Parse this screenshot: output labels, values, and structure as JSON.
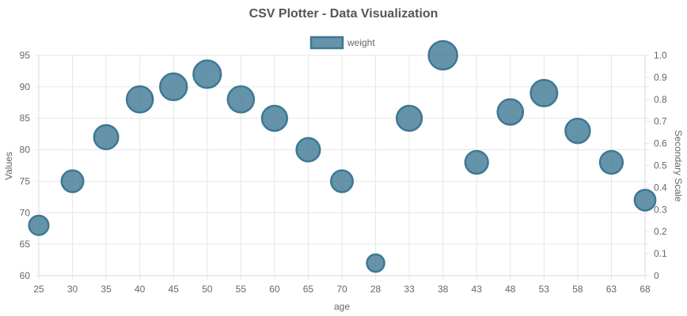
{
  "chart_data": {
    "type": "scatter",
    "subtype": "bubble",
    "title": "CSV Plotter - Data Visualization",
    "xlabel": "age",
    "ylabel": "Values",
    "y2label": "Secondary Scale",
    "x_axis_type": "category",
    "categories": [
      "25",
      "30",
      "35",
      "40",
      "45",
      "50",
      "55",
      "60",
      "65",
      "70",
      "28",
      "33",
      "38",
      "43",
      "48",
      "53",
      "58",
      "63",
      "68"
    ],
    "y_ticks": [
      "60",
      "65",
      "70",
      "75",
      "80",
      "85",
      "90",
      "95"
    ],
    "y2_ticks": [
      "0",
      "0.1",
      "0.2",
      "0.3",
      "0.4",
      "0.5",
      "0.6",
      "0.7",
      "0.8",
      "0.9",
      "1.0"
    ],
    "ylim": [
      60,
      95
    ],
    "y2lim": [
      0,
      1
    ],
    "grid": true,
    "legend_position": "top",
    "series": [
      {
        "name": "weight",
        "color": "#3e7894",
        "values": [
          68,
          75,
          82,
          88,
          90,
          92,
          88,
          85,
          80,
          75,
          62,
          85,
          95,
          78,
          86,
          89,
          83,
          78,
          72
        ]
      }
    ]
  }
}
